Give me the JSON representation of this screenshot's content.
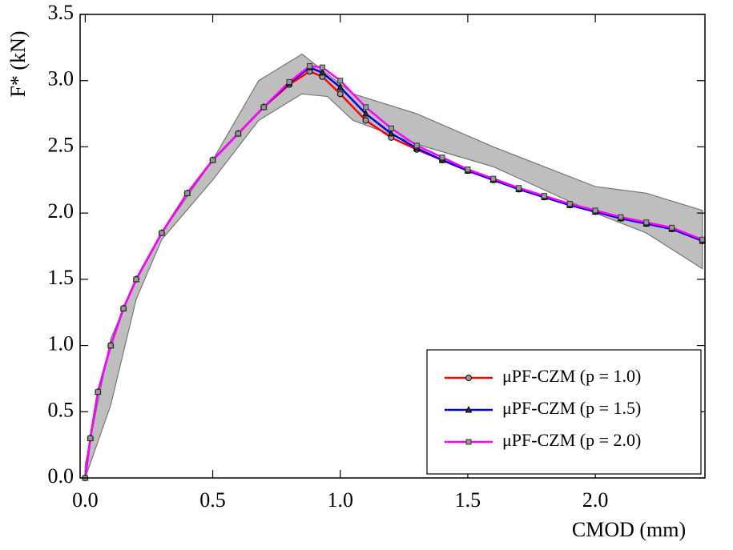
{
  "chart_data": {
    "type": "line",
    "x_label": "CMOD (mm)",
    "y_label": "F* (kN)",
    "xlim": [
      -0.02,
      2.43
    ],
    "ylim": [
      0,
      3.5
    ],
    "xticks": [
      {
        "value": 0,
        "label": "0.0"
      },
      0.5,
      {
        "value": 1,
        "label": "1.0"
      },
      1.5,
      {
        "value": 2,
        "label": "2.0"
      }
    ],
    "yticks": [
      {
        "value": 0,
        "label": "0.0"
      },
      0.5,
      {
        "value": 1,
        "label": "1.0"
      },
      1.5,
      {
        "value": 2,
        "label": "2.0"
      },
      2.5,
      {
        "value": 3,
        "label": "3.0"
      },
      3.5
    ],
    "x": [
      0,
      0.02,
      0.05,
      0.1,
      0.15,
      0.2,
      0.3,
      0.4,
      0.5,
      0.6,
      0.7,
      0.8,
      0.88,
      0.93,
      1.0,
      1.1,
      1.2,
      1.3,
      1.4,
      1.5,
      1.6,
      1.7,
      1.8,
      1.9,
      2.0,
      2.1,
      2.2,
      2.3,
      2.42
    ],
    "series": [
      {
        "name": "μPF-CZM (p = 1.0)",
        "color": "#ff0000",
        "marker": "circle",
        "values": [
          0,
          0.3,
          0.65,
          1.0,
          1.28,
          1.5,
          1.85,
          2.15,
          2.4,
          2.6,
          2.8,
          2.97,
          3.07,
          3.03,
          2.9,
          2.7,
          2.57,
          2.48,
          2.4,
          2.32,
          2.25,
          2.18,
          2.12,
          2.06,
          2.01,
          1.96,
          1.92,
          1.88,
          1.79
        ]
      },
      {
        "name": "μPF-CZM (p = 1.5)",
        "color": "#0000dd",
        "marker": "triangle",
        "values": [
          0,
          0.3,
          0.65,
          1.0,
          1.28,
          1.5,
          1.85,
          2.15,
          2.4,
          2.6,
          2.8,
          2.98,
          3.1,
          3.06,
          2.95,
          2.75,
          2.6,
          2.49,
          2.4,
          2.32,
          2.25,
          2.18,
          2.12,
          2.06,
          2.01,
          1.96,
          1.92,
          1.88,
          1.79
        ]
      },
      {
        "name": "μPF-CZM (p = 2.0)",
        "color": "#ff00ff",
        "marker": "square",
        "values": [
          0,
          0.3,
          0.65,
          1.0,
          1.28,
          1.5,
          1.85,
          2.15,
          2.4,
          2.6,
          2.8,
          2.99,
          3.11,
          3.1,
          3.0,
          2.8,
          2.64,
          2.51,
          2.42,
          2.33,
          2.26,
          2.19,
          2.13,
          2.07,
          2.02,
          1.97,
          1.93,
          1.89,
          1.8
        ]
      }
    ],
    "band": {
      "color": "#bebebe",
      "x": [
        0,
        0.1,
        0.2,
        0.3,
        0.5,
        0.68,
        0.85,
        0.95,
        1.05,
        1.3,
        1.6,
        2.0,
        2.2,
        2.42
      ],
      "upper": [
        0.1,
        1.05,
        1.5,
        1.85,
        2.4,
        3.0,
        3.2,
        3.05,
        2.9,
        2.75,
        2.5,
        2.2,
        2.15,
        2.02
      ],
      "lower": [
        0,
        0.55,
        1.35,
        1.8,
        2.25,
        2.7,
        2.9,
        2.88,
        2.7,
        2.52,
        2.35,
        2.0,
        1.85,
        1.58
      ]
    },
    "legend": "lower right"
  }
}
